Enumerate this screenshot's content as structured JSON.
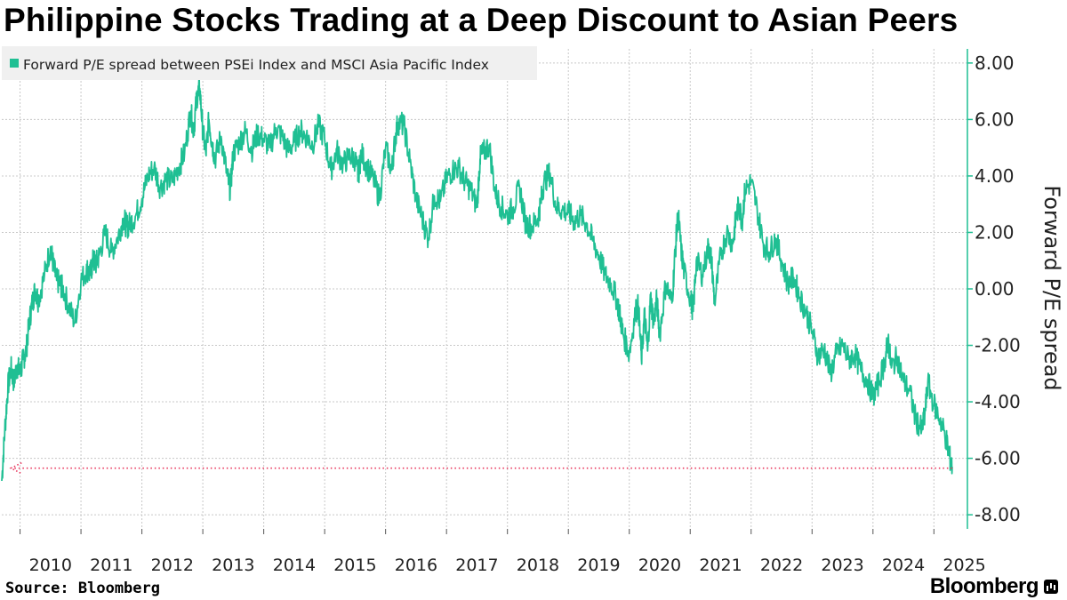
{
  "title": "Philippine Stocks Trading at a Deep Discount to Asian Peers",
  "source": "Source: Bloomberg",
  "brand": "Bloomberg",
  "chart_data": {
    "type": "line",
    "legend": "Forward P/E spread between PSEi Index and MSCI Asia Pacific Index",
    "legend_position": "top-left",
    "ylabel": "Forward P/E spread",
    "xlabel": "",
    "ylim": [
      -8.5,
      8.5
    ],
    "xlim": [
      2009.7,
      2025.55
    ],
    "yticks": [
      8,
      6,
      4,
      2,
      0,
      -2,
      -4,
      -6,
      -8
    ],
    "ytick_labels": [
      "8.00",
      "6.00",
      "4.00",
      "2.00",
      "0.00",
      "-2.00",
      "-4.00",
      "-6.00",
      "-8.00"
    ],
    "xticks": [
      2010,
      2011,
      2012,
      2013,
      2014,
      2015,
      2016,
      2017,
      2018,
      2019,
      2020,
      2021,
      2022,
      2023,
      2024,
      2025
    ],
    "xtick_labels": [
      "2010",
      "2011",
      "2012",
      "2013",
      "2014",
      "2015",
      "2016",
      "2017",
      "2018",
      "2019",
      "2020",
      "2021",
      "2022",
      "2023",
      "2024",
      "2025"
    ],
    "grid": true,
    "line_color": "#1fbf93",
    "series": [
      {
        "name": "Forward P/E spread between PSEi Index and MSCI Asia Pacific Index",
        "x": [
          2009.7,
          2009.75,
          2009.8,
          2009.85,
          2009.9,
          2009.95,
          2010.0,
          2010.05,
          2010.1,
          2010.15,
          2010.2,
          2010.25,
          2010.3,
          2010.4,
          2010.5,
          2010.55,
          2010.6,
          2010.65,
          2010.7,
          2010.8,
          2010.9,
          2011.0,
          2011.1,
          2011.15,
          2011.2,
          2011.25,
          2011.3,
          2011.4,
          2011.5,
          2011.6,
          2011.7,
          2011.75,
          2011.8,
          2011.9,
          2012.0,
          2012.1,
          2012.2,
          2012.3,
          2012.4,
          2012.5,
          2012.6,
          2012.7,
          2012.8,
          2012.85,
          2012.9,
          2012.95,
          2013.0,
          2013.05,
          2013.1,
          2013.15,
          2013.2,
          2013.3,
          2013.4,
          2013.45,
          2013.5,
          2013.6,
          2013.7,
          2013.8,
          2013.9,
          2014.0,
          2014.1,
          2014.2,
          2014.3,
          2014.4,
          2014.5,
          2014.6,
          2014.7,
          2014.8,
          2014.9,
          2015.0,
          2015.1,
          2015.2,
          2015.3,
          2015.4,
          2015.5,
          2015.55,
          2015.6,
          2015.7,
          2015.8,
          2015.9,
          2016.0,
          2016.1,
          2016.15,
          2016.2,
          2016.3,
          2016.4,
          2016.5,
          2016.6,
          2016.7,
          2016.8,
          2016.9,
          2017.0,
          2017.1,
          2017.2,
          2017.3,
          2017.4,
          2017.5,
          2017.55,
          2017.6,
          2017.7,
          2017.8,
          2017.9,
          2018.0,
          2018.1,
          2018.2,
          2018.3,
          2018.4,
          2018.5,
          2018.55,
          2018.6,
          2018.7,
          2018.8,
          2018.9,
          2019.0,
          2019.1,
          2019.2,
          2019.3,
          2019.4,
          2019.5,
          2019.6,
          2019.7,
          2019.8,
          2019.85,
          2019.9,
          2020.0,
          2020.1,
          2020.15,
          2020.2,
          2020.25,
          2020.3,
          2020.35,
          2020.4,
          2020.45,
          2020.5,
          2020.6,
          2020.7,
          2020.75,
          2020.8,
          2020.85,
          2020.9,
          2021.0,
          2021.05,
          2021.1,
          2021.2,
          2021.3,
          2021.35,
          2021.4,
          2021.5,
          2021.6,
          2021.7,
          2021.75,
          2021.8,
          2021.85,
          2021.9,
          2022.0,
          2022.1,
          2022.2,
          2022.3,
          2022.4,
          2022.5,
          2022.6,
          2022.7,
          2022.8,
          2022.9,
          2023.0,
          2023.1,
          2023.2,
          2023.3,
          2023.4,
          2023.5,
          2023.6,
          2023.7,
          2023.8,
          2023.9,
          2024.0,
          2024.1,
          2024.2,
          2024.25,
          2024.3,
          2024.4,
          2024.5,
          2024.6,
          2024.7,
          2024.8,
          2024.85,
          2024.9,
          2025.0,
          2025.1,
          2025.2,
          2025.25,
          2025.3
        ],
        "y": [
          -6.8,
          -5.0,
          -3.5,
          -2.8,
          -3.3,
          -2.7,
          -3.0,
          -2.5,
          -2.2,
          -1.2,
          -0.5,
          0.0,
          -0.4,
          0.5,
          1.5,
          0.8,
          0.3,
          0.2,
          0.0,
          -0.6,
          -1.2,
          0.3,
          0.7,
          0.5,
          1.0,
          0.9,
          1.2,
          2.0,
          1.3,
          1.8,
          2.5,
          2.2,
          2.3,
          2.6,
          3.2,
          4.0,
          4.3,
          3.6,
          3.9,
          3.8,
          4.3,
          4.8,
          6.3,
          5.6,
          6.8,
          7.1,
          5.6,
          4.8,
          6.0,
          5.2,
          4.6,
          5.4,
          4.0,
          3.5,
          4.8,
          5.2,
          5.6,
          4.9,
          5.5,
          5.3,
          5.0,
          5.7,
          5.4,
          4.9,
          5.2,
          5.6,
          5.4,
          5.1,
          5.8,
          5.3,
          4.2,
          4.9,
          4.4,
          4.7,
          4.6,
          4.0,
          4.8,
          4.3,
          3.9,
          3.2,
          5.0,
          4.2,
          5.2,
          5.9,
          5.8,
          4.5,
          3.2,
          2.5,
          1.8,
          3.3,
          3.1,
          3.9,
          4.2,
          4.3,
          3.8,
          3.5,
          2.9,
          4.6,
          4.8,
          5.1,
          3.4,
          2.9,
          2.6,
          2.9,
          3.6,
          2.3,
          2.2,
          2.5,
          3.1,
          3.8,
          4.1,
          2.9,
          2.8,
          2.7,
          2.4,
          2.6,
          2.3,
          1.7,
          1.2,
          0.5,
          0.2,
          -0.4,
          -1.0,
          -1.6,
          -2.3,
          -0.8,
          -0.6,
          -2.5,
          -0.9,
          -2.2,
          -0.3,
          -1.2,
          -0.4,
          -1.6,
          0.2,
          -0.5,
          1.2,
          2.7,
          1.4,
          0.6,
          -0.3,
          -0.8,
          1.0,
          0.5,
          1.5,
          1.0,
          -0.5,
          1.2,
          2.0,
          1.6,
          2.5,
          3.0,
          2.4,
          3.5,
          3.8,
          2.8,
          1.6,
          1.3,
          1.8,
          1.0,
          0.2,
          0.4,
          -0.3,
          -0.8,
          -1.5,
          -2.4,
          -2.1,
          -3.0,
          -2.3,
          -2.0,
          -2.5,
          -2.3,
          -2.9,
          -3.2,
          -3.8,
          -3.3,
          -2.5,
          -1.8,
          -2.8,
          -2.4,
          -3.3,
          -3.6,
          -4.6,
          -5.0,
          -4.5,
          -3.3,
          -4.1,
          -4.6,
          -5.3,
          -5.9,
          -6.3
        ]
      }
    ],
    "annotation": {
      "type": "dotted-arrow",
      "color": "#e8325a",
      "y": -6.35,
      "x_from": 2025.3,
      "x_to": 2009.85
    }
  }
}
